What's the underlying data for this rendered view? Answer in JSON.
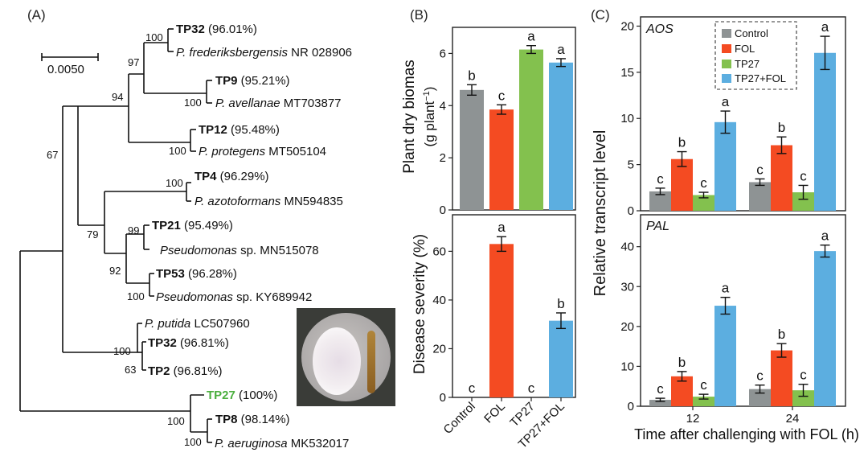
{
  "panels": {
    "A": "(A)",
    "B": "(B)",
    "C": "(C)"
  },
  "tree": {
    "scale_label": "0.0050",
    "bootstrap": {
      "b100_tp32": "100",
      "b97": "97",
      "b94": "94",
      "b100_tp9": "100",
      "b100_tp12": "100",
      "b67": "67",
      "b100_tp4": "100",
      "b79": "79",
      "b99": "99",
      "b92": "92",
      "b100_tp53": "100",
      "b100_tp2": "100",
      "b63": "63",
      "b100_tp8": "100",
      "b100_aer": "100"
    },
    "taxa": [
      {
        "id": "TP32",
        "bold": "TP32",
        "rest": " (96.01%)"
      },
      {
        "id": "frederiks",
        "italic": "P. frederiksbergensis",
        "rest": " NR 028906"
      },
      {
        "id": "TP9",
        "bold": "TP9",
        "rest": " (95.21%)"
      },
      {
        "id": "avellanae",
        "italic": "P. avellanae",
        "rest": " MT703877"
      },
      {
        "id": "TP12",
        "bold": "TP12",
        "rest": " (95.48%)"
      },
      {
        "id": "protegens",
        "italic": "P. protegens",
        "rest": " MT505104"
      },
      {
        "id": "TP4",
        "bold": "TP4",
        "rest": " (96.29%)"
      },
      {
        "id": "azotoformans",
        "italic": "P. azotoformans",
        "rest": " MN594835"
      },
      {
        "id": "TP21",
        "bold": "TP21",
        "rest": " (95.49%)"
      },
      {
        "id": "pseudo1",
        "italic": "Pseudomonas",
        "rest": " sp. MN515078"
      },
      {
        "id": "TP53",
        "bold": "TP53",
        "rest": " (96.28%)"
      },
      {
        "id": "pseudo2",
        "italic": "Pseudomonas",
        "rest": " sp. KY689942"
      },
      {
        "id": "putida",
        "italic": "P. putida",
        "rest": " LC507960"
      },
      {
        "id": "TP32b",
        "bold": "TP32",
        "rest": " (96.81%)"
      },
      {
        "id": "TP2",
        "bold": "TP2",
        "rest": " (96.81%)"
      },
      {
        "id": "TP27",
        "green": "TP27",
        "rest": " (100%)"
      },
      {
        "id": "TP8",
        "bold": "TP8",
        "rest": " (98.14%)"
      },
      {
        "id": "aeruginosa",
        "italic": "P. aeruginosa",
        "rest": " MK532017"
      }
    ]
  },
  "colors": {
    "Control": "#8e9394",
    "FOL": "#f44b22",
    "TP27": "#83c14e",
    "TP27+FOL": "#5caee0"
  },
  "chart_data": [
    {
      "id": "biomass",
      "type": "bar",
      "ylabel_line1": "Plant dry biomas",
      "ylabel_line2_pre": "(g plant",
      "ylabel_line2_sup": "−1",
      "ylabel_line2_post": ")",
      "ylim": [
        0,
        7
      ],
      "yticks": [
        0,
        2,
        4,
        6
      ],
      "categories": [
        "Control",
        "FOL",
        "TP27",
        "TP27+FOL"
      ],
      "values": [
        4.6,
        3.85,
        6.15,
        5.65
      ],
      "errors": [
        0.2,
        0.18,
        0.15,
        0.15
      ],
      "letters": [
        "b",
        "c",
        "a",
        "a"
      ]
    },
    {
      "id": "disease",
      "type": "bar",
      "ylabel": "Disease severity (%)",
      "ylim": [
        0,
        75
      ],
      "yticks": [
        0,
        20,
        40,
        60
      ],
      "categories": [
        "Control",
        "FOL",
        "TP27",
        "TP27+FOL"
      ],
      "values": [
        0,
        63,
        0,
        31.5
      ],
      "errors": [
        0,
        3,
        0,
        3.2
      ],
      "letters": [
        "c",
        "a",
        "c",
        "b"
      ]
    },
    {
      "id": "aos",
      "type": "bar",
      "title": "AOS",
      "ylim": [
        0,
        21
      ],
      "yticks": [
        0,
        5,
        10,
        15,
        20
      ],
      "categories": [
        "12",
        "24"
      ],
      "series": [
        {
          "name": "Control",
          "values": [
            2.1,
            3.1
          ],
          "errors": [
            0.35,
            0.35
          ],
          "letters": [
            "c",
            "c"
          ]
        },
        {
          "name": "FOL",
          "values": [
            5.6,
            7.1
          ],
          "errors": [
            0.8,
            0.9
          ],
          "letters": [
            "b",
            "b"
          ]
        },
        {
          "name": "TP27",
          "values": [
            1.7,
            2.0
          ],
          "errors": [
            0.3,
            0.75
          ],
          "letters": [
            "c",
            "c"
          ]
        },
        {
          "name": "TP27+FOL",
          "values": [
            9.6,
            17.1
          ],
          "errors": [
            1.2,
            1.8
          ],
          "letters": [
            "a",
            "a"
          ]
        }
      ],
      "legend_position": "top-right"
    },
    {
      "id": "pal",
      "type": "bar",
      "title": "PAL",
      "ylim": [
        0,
        48
      ],
      "yticks": [
        0,
        10,
        20,
        30,
        40
      ],
      "categories": [
        "12",
        "24"
      ],
      "series": [
        {
          "name": "Control",
          "values": [
            1.6,
            4.3
          ],
          "errors": [
            0.4,
            1.0
          ],
          "letters": [
            "c",
            "c"
          ]
        },
        {
          "name": "FOL",
          "values": [
            7.5,
            14.0
          ],
          "errors": [
            1.2,
            1.7
          ],
          "letters": [
            "b",
            "b"
          ]
        },
        {
          "name": "TP27",
          "values": [
            2.4,
            4.0
          ],
          "errors": [
            0.6,
            1.5
          ],
          "letters": [
            "c",
            "c"
          ]
        },
        {
          "name": "TP27+FOL",
          "values": [
            25.2,
            38.9
          ],
          "errors": [
            2.1,
            1.5
          ],
          "letters": [
            "a",
            "a"
          ]
        }
      ]
    }
  ],
  "panelC": {
    "ylabel": "Relative transcript level",
    "xlabel": "Time after challenging with FOL (h)",
    "legend": [
      "Control",
      "FOL",
      "TP27",
      "TP27+FOL"
    ]
  }
}
